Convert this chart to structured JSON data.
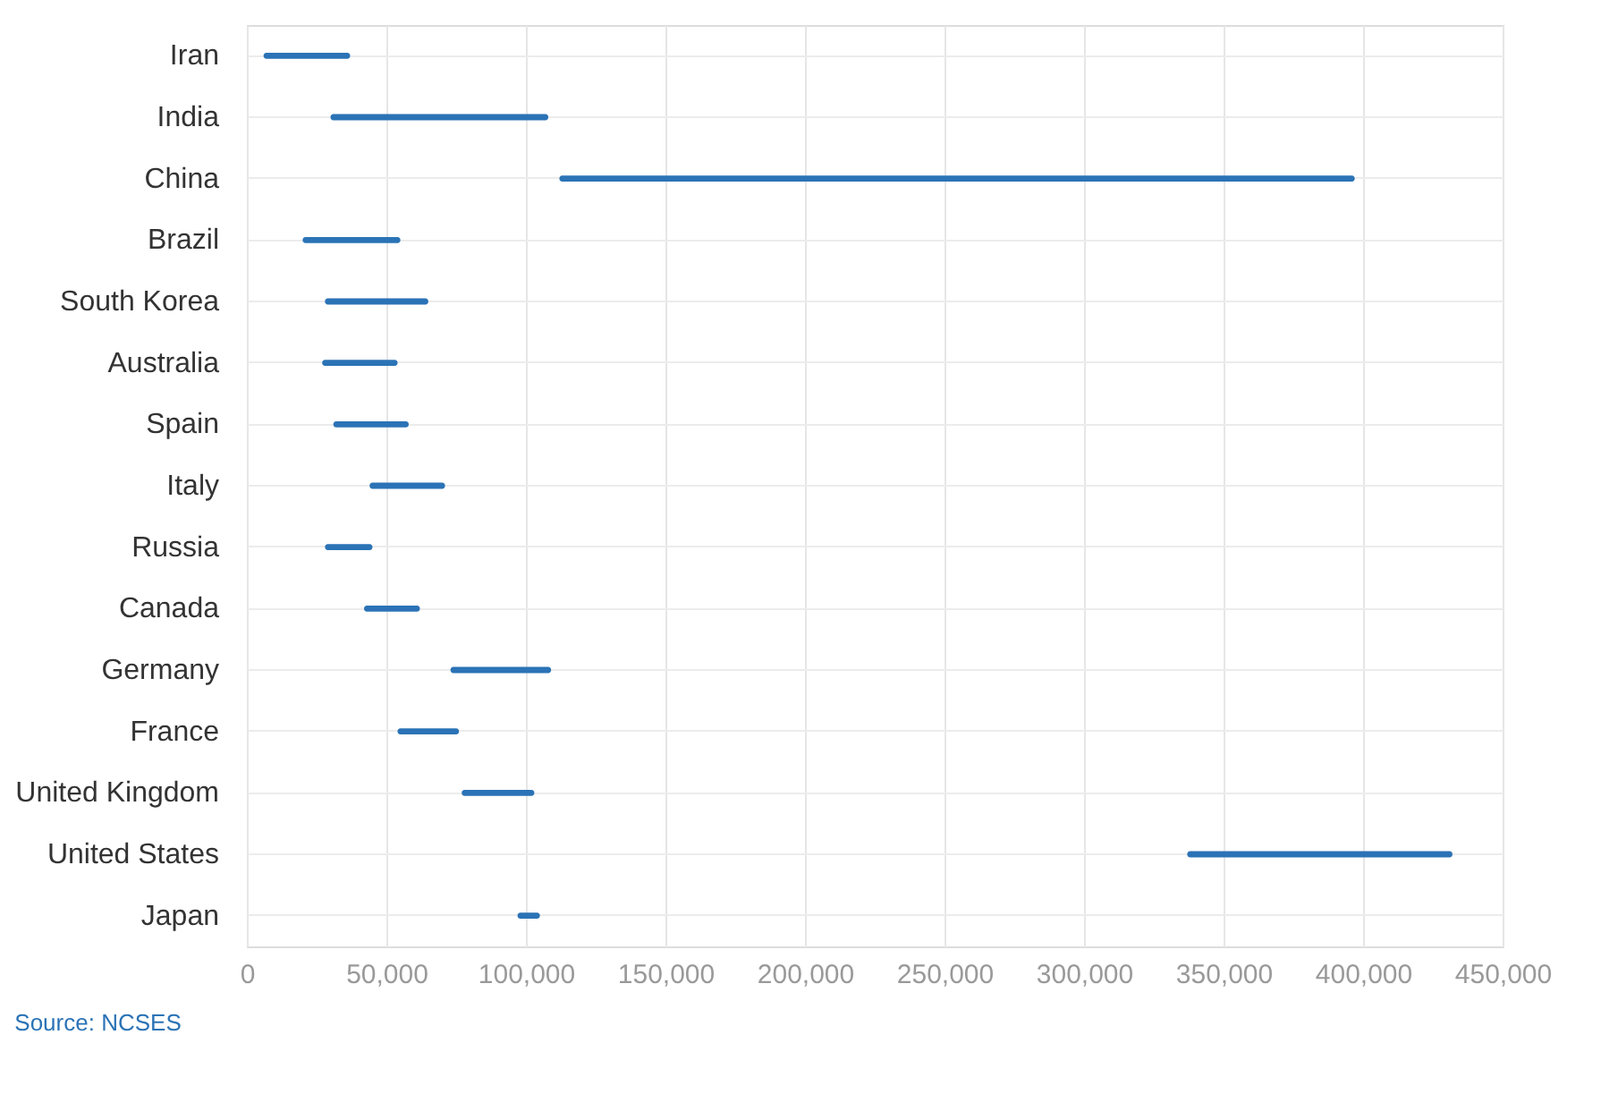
{
  "chart_data": {
    "type": "bar",
    "orientation": "horizontal",
    "categories": [
      "Iran",
      "India",
      "China",
      "Brazil",
      "South Korea",
      "Australia",
      "Spain",
      "Italy",
      "Russia",
      "Canada",
      "Germany",
      "France",
      "United Kingdom",
      "United States",
      "Japan"
    ],
    "series": [
      {
        "color": "#2b73b6",
        "base": [
          6000,
          30000,
          112000,
          20000,
          28000,
          27000,
          31000,
          44000,
          28000,
          42000,
          73000,
          54000,
          77000,
          337000,
          97000
        ],
        "values": [
          31000,
          78000,
          285000,
          35000,
          37000,
          27000,
          27000,
          27000,
          17000,
          20000,
          36000,
          22000,
          26000,
          95000,
          8000
        ]
      }
    ],
    "xlim": [
      0,
      450000
    ],
    "xticks": [
      {
        "value": 0,
        "label": "0"
      },
      {
        "value": 50000,
        "label": "50,000"
      },
      {
        "value": 100000,
        "label": "100,000"
      },
      {
        "value": 150000,
        "label": "150,000"
      },
      {
        "value": 200000,
        "label": "200,000"
      },
      {
        "value": 250000,
        "label": "250,000"
      },
      {
        "value": 300000,
        "label": "300,000"
      },
      {
        "value": 350000,
        "label": "350,000"
      },
      {
        "value": 400000,
        "label": "400,000"
      },
      {
        "value": 450000,
        "label": "450,000"
      }
    ],
    "grid": true,
    "legend": false,
    "annotations": [
      "Source: NCSES"
    ]
  }
}
